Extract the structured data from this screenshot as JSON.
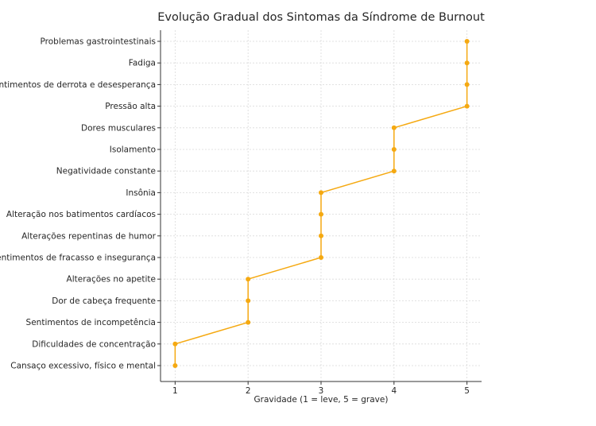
{
  "chart_data": {
    "type": "line",
    "title": "Evolução Gradual dos Sintomas da Síndrome de Burnout",
    "xlabel": "Gravidade (1 = leve, 5 = grave)",
    "ylabel": "",
    "xlim": [
      0.8,
      5.2
    ],
    "xticks": [
      1,
      2,
      3,
      4,
      5
    ],
    "grid": true,
    "legend": "none",
    "color": "#f5a911",
    "categories": [
      "Cansaço excessivo, físico e mental",
      "Dificuldades de concentração",
      "Sentimentos de incompetência",
      "Dor de cabeça frequente",
      "Alterações no apetite",
      "Sentimentos de fracasso e insegurança",
      "Alterações repentinas de humor",
      "Alteração nos batimentos cardíacos",
      "Insônia",
      "Negatividade constante",
      "Isolamento",
      "Dores musculares",
      "Pressão alta",
      "Sentimentos de derrota e desesperança",
      "Fadiga",
      "Problemas gastrointestinais"
    ],
    "values": [
      1,
      1,
      2,
      2,
      2,
      3,
      3,
      3,
      3,
      4,
      4,
      4,
      5,
      5,
      5,
      5
    ]
  }
}
